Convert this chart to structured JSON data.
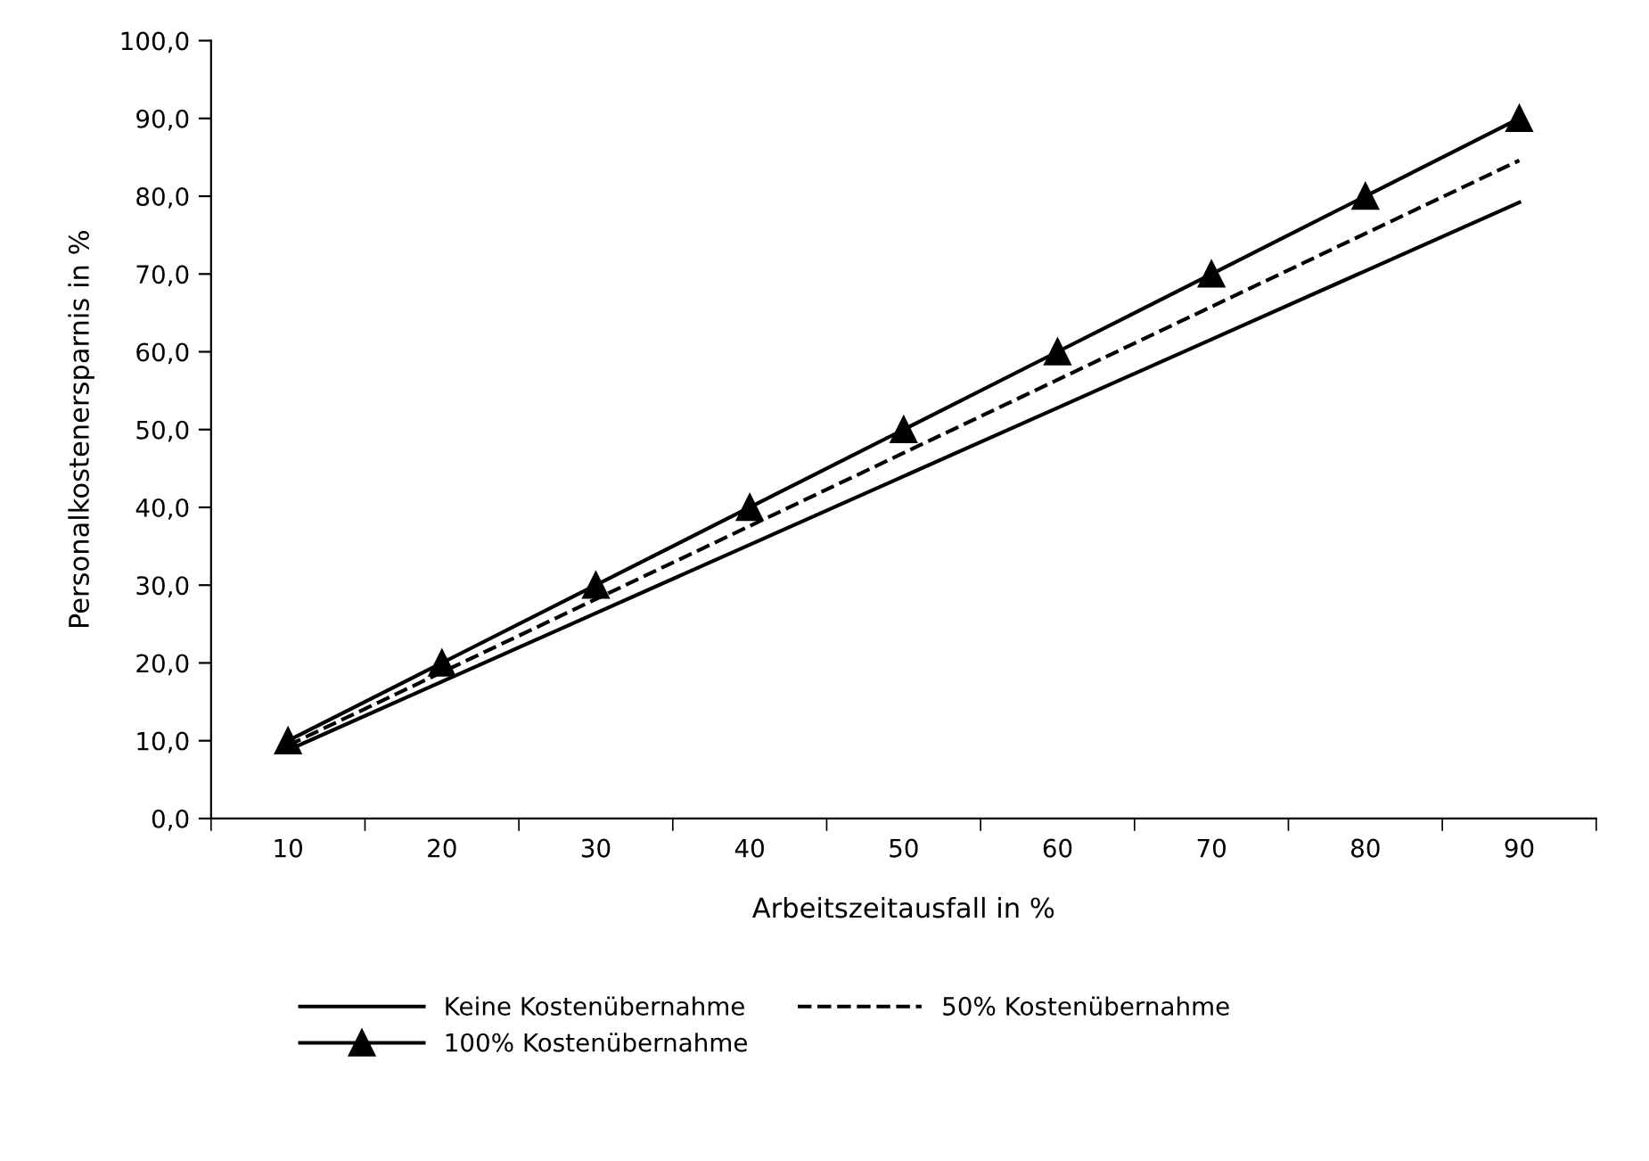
{
  "chart_data": {
    "type": "line",
    "xlabel": "Arbeitszeitausfall in %",
    "ylabel": "Personalkostenersparnis in %",
    "categories": [
      "10",
      "20",
      "30",
      "40",
      "50",
      "60",
      "70",
      "80",
      "90"
    ],
    "series": [
      {
        "name": "Keine Kostenübernahme",
        "color": "#000000",
        "line_style": "solid",
        "marker": "none",
        "values": [
          8.8,
          17.6,
          26.4,
          35.2,
          44.0,
          52.8,
          61.6,
          70.4,
          79.2
        ]
      },
      {
        "name": "50% Kostenübernahme",
        "color": "#000000",
        "line_style": "dashed",
        "marker": "none",
        "values": [
          9.4,
          18.8,
          28.2,
          37.6,
          47.0,
          56.4,
          65.8,
          75.2,
          84.6
        ]
      },
      {
        "name": "100% Kostenübernahme",
        "color": "#000000",
        "line_style": "solid",
        "marker": "triangle",
        "values": [
          10,
          20,
          30,
          40,
          50,
          60,
          70,
          80,
          90
        ]
      }
    ],
    "ylim": [
      0,
      100
    ],
    "yticks": [
      {
        "value": 0,
        "label": "0,0"
      },
      {
        "value": 10,
        "label": "10,0"
      },
      {
        "value": 20,
        "label": "20,0"
      },
      {
        "value": 30,
        "label": "30,0"
      },
      {
        "value": 40,
        "label": "40,0"
      },
      {
        "value": 50,
        "label": "50,0"
      },
      {
        "value": 60,
        "label": "60,0"
      },
      {
        "value": 70,
        "label": "70,0"
      },
      {
        "value": 80,
        "label": "80,0"
      },
      {
        "value": 90,
        "label": "90,0"
      },
      {
        "value": 100,
        "label": "100,0"
      }
    ],
    "grid": false,
    "legend": "bottom"
  }
}
